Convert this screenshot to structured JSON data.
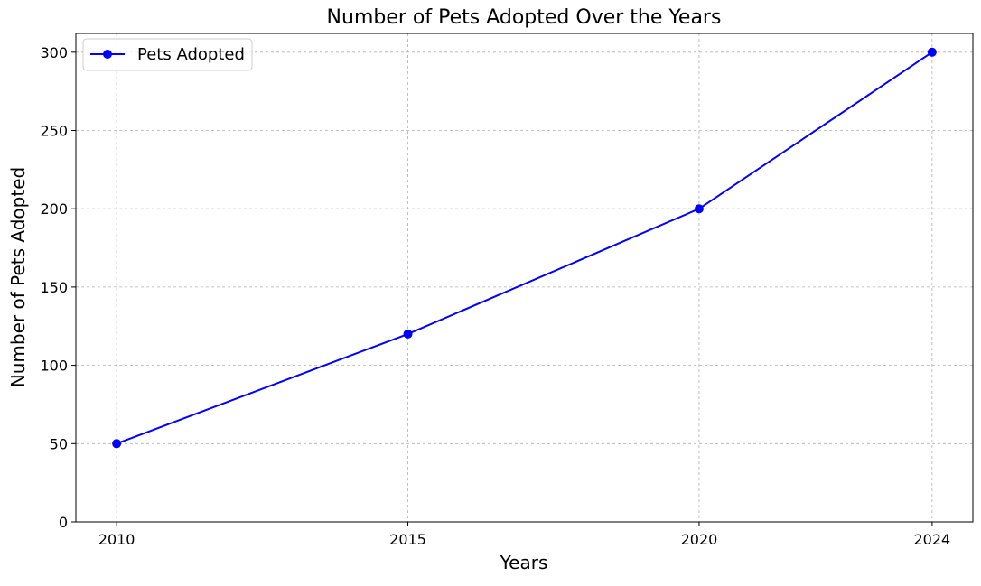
{
  "chart_data": {
    "type": "line",
    "title": "Number of Pets Adopted Over the Years",
    "xlabel": "Years",
    "ylabel": "Number of Pets Adopted",
    "x": [
      2010,
      2015,
      2020,
      2024
    ],
    "xticks": [
      "2010",
      "2015",
      "2020",
      "2024"
    ],
    "yticks": [
      0,
      50,
      100,
      150,
      200,
      250,
      300
    ],
    "xlim": [
      2009.3,
      2024.7
    ],
    "ylim": [
      0,
      312
    ],
    "grid": true,
    "legend_position": "top-left",
    "series": [
      {
        "name": "Pets Adopted",
        "values": [
          50,
          120,
          200,
          300
        ],
        "color": "#0000ff",
        "marker": "circle"
      }
    ]
  }
}
